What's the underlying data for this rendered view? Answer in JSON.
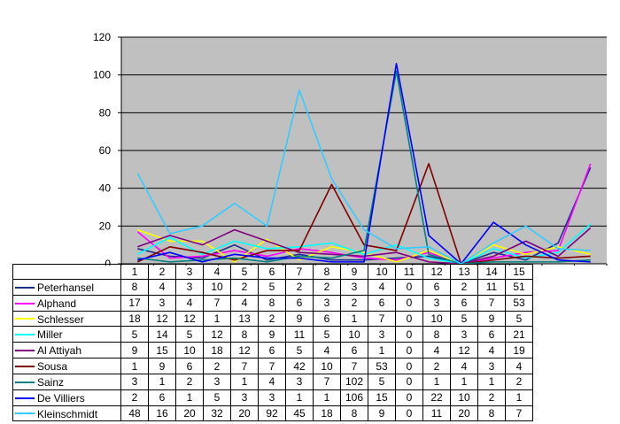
{
  "chart_data": {
    "type": "line",
    "categories": [
      "1",
      "2",
      "3",
      "4",
      "5",
      "6",
      "7",
      "8",
      "9",
      "10",
      "11",
      "12",
      "13",
      "14",
      "15"
    ],
    "ylim": [
      0,
      120
    ],
    "yticks": [
      "0",
      "20",
      "40",
      "60",
      "80",
      "100",
      "120"
    ],
    "grid": true,
    "plot_background": "#c0c0c0",
    "legend": "data table below chart",
    "series": [
      {
        "name": "Peterhansel",
        "color": "#1c2f8f",
        "values": [
          8,
          4,
          3,
          10,
          2,
          5,
          2,
          2,
          3,
          4,
          0,
          6,
          2,
          11,
          51
        ]
      },
      {
        "name": "Alphand",
        "color": "#ff00ff",
        "values": [
          17,
          3,
          4,
          7,
          4,
          8,
          6,
          3,
          2,
          6,
          0,
          3,
          6,
          7,
          53
        ]
      },
      {
        "name": "Schlesser",
        "color": "#ffff00",
        "values": [
          18,
          12,
          12,
          1,
          13,
          2,
          9,
          6,
          1,
          7,
          0,
          10,
          5,
          9,
          5
        ]
      },
      {
        "name": "Miller",
        "color": "#00ffff",
        "values": [
          5,
          14,
          5,
          12,
          8,
          9,
          11,
          5,
          10,
          3,
          0,
          8,
          3,
          6,
          21
        ]
      },
      {
        "name": "Al Attiyah",
        "color": "#800080",
        "values": [
          9,
          15,
          10,
          18,
          12,
          6,
          5,
          4,
          6,
          1,
          0,
          4,
          12,
          4,
          19
        ]
      },
      {
        "name": "Sousa",
        "color": "#800000",
        "values": [
          1,
          9,
          6,
          2,
          7,
          7,
          42,
          10,
          7,
          53,
          0,
          2,
          4,
          3,
          4
        ]
      },
      {
        "name": "Sainz",
        "color": "#008080",
        "values": [
          3,
          1,
          2,
          3,
          1,
          4,
          3,
          7,
          102,
          5,
          0,
          1,
          1,
          1,
          2
        ]
      },
      {
        "name": "De Villiers",
        "color": "#0000ff",
        "values": [
          2,
          6,
          1,
          5,
          3,
          3,
          1,
          1,
          106,
          15,
          0,
          22,
          10,
          2,
          1
        ]
      },
      {
        "name": "Kleinschmidt",
        "color": "#33ccff",
        "values": [
          48,
          16,
          20,
          32,
          20,
          92,
          45,
          18,
          8,
          9,
          0,
          11,
          20,
          8,
          7
        ]
      }
    ]
  }
}
